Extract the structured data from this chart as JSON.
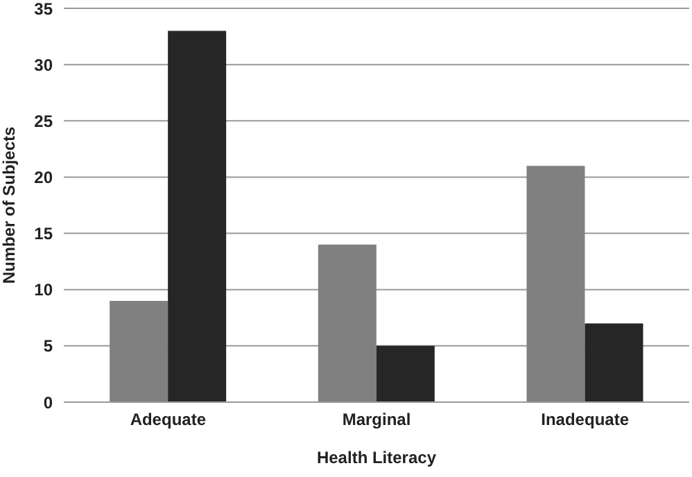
{
  "chart_data": {
    "type": "bar",
    "xlabel": "Health Literacy",
    "ylabel": "Number of Subjects",
    "categories": [
      "Adequate",
      "Marginal",
      "Inadequate"
    ],
    "series": [
      {
        "color": "#808080",
        "values": [
          9,
          14,
          21
        ]
      },
      {
        "color": "#262626",
        "values": [
          33,
          5,
          7
        ]
      }
    ],
    "ylim": [
      0,
      35
    ],
    "yticks": [
      0,
      5,
      10,
      15,
      20,
      25,
      30,
      35
    ],
    "grid": "y"
  }
}
